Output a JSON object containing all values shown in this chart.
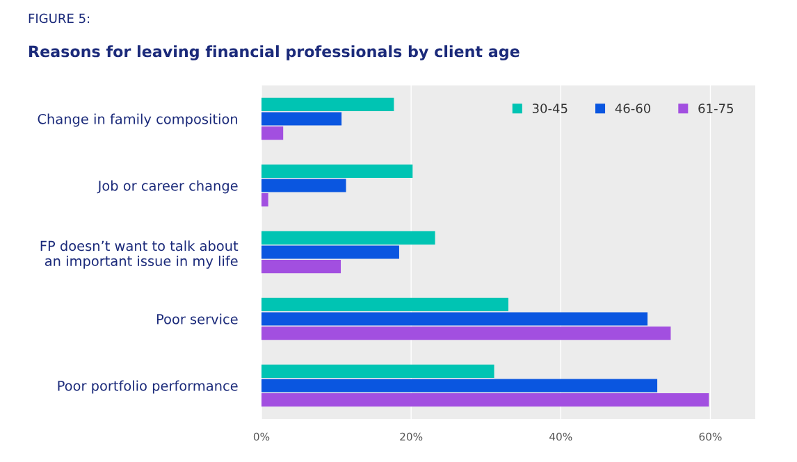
{
  "chart_data": {
    "type": "bar",
    "orientation": "horizontal",
    "subtitle": "FIGURE 5:",
    "title": "Reasons for leaving financial professionals by client age",
    "categories": [
      "Change in family composition",
      "Job or career change",
      "FP doesn’t want to talk about\nan important issue in my life",
      "Poor service",
      "Poor portfolio performance"
    ],
    "series": [
      {
        "name": "30-45",
        "color": "#00c4b3",
        "values": [
          17.7,
          20.2,
          23.2,
          33.0,
          31.1
        ]
      },
      {
        "name": "46-60",
        "color": "#0a56e0",
        "values": [
          10.7,
          11.3,
          18.4,
          51.6,
          52.9
        ]
      },
      {
        "name": "61-75",
        "color": "#a24fe0",
        "values": [
          2.9,
          0.9,
          10.6,
          54.7,
          59.8
        ]
      }
    ],
    "xlim": [
      0,
      66
    ],
    "xticks": [
      {
        "value": 0,
        "label": "0%"
      },
      {
        "value": 20,
        "label": "20%"
      },
      {
        "value": 40,
        "label": "40%"
      },
      {
        "value": 60,
        "label": "60%"
      }
    ],
    "grid": "x",
    "legend": "top right"
  }
}
